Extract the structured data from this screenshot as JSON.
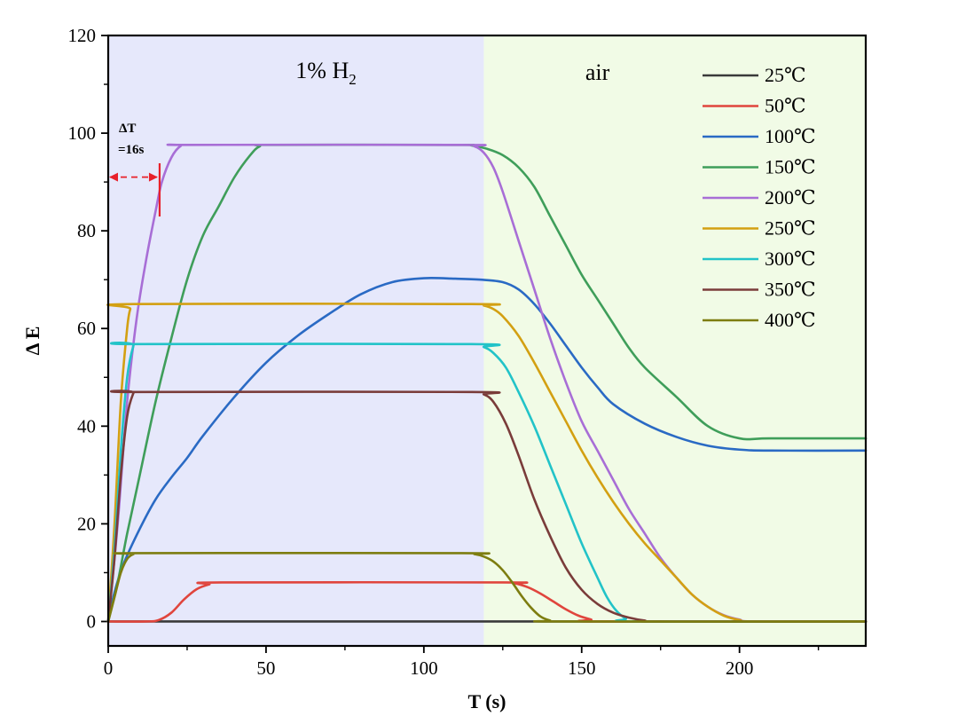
{
  "chart_data": {
    "type": "line",
    "title": "",
    "xlabel": "T (s)",
    "ylabel": "Δ E",
    "xlim": [
      0,
      240
    ],
    "ylim": [
      -5,
      120
    ],
    "xticks": [
      0,
      50,
      100,
      150,
      200
    ],
    "yticks": [
      0,
      20,
      40,
      60,
      80,
      100,
      120
    ],
    "legend_position": "top-right",
    "regions": [
      {
        "label_prefix": "1% H",
        "label_sub": "2",
        "x_range": [
          0,
          119
        ],
        "color": "#e6e8fb"
      },
      {
        "label": "air",
        "x_range": [
          119,
          240
        ],
        "color": "#f1fbe6"
      }
    ],
    "annotation": {
      "line1": "ΔT",
      "line2": "=16s",
      "x_from": 0,
      "x_to": 16,
      "y": 91,
      "color": "#e8202a"
    },
    "series": [
      {
        "name": "25℃",
        "color": "#3a3a3a",
        "points": [
          [
            0,
            0
          ],
          [
            240,
            0
          ]
        ]
      },
      {
        "name": "50℃",
        "color": "#e0453d",
        "points": [
          [
            0,
            0
          ],
          [
            12,
            0
          ],
          [
            16,
            0.3
          ],
          [
            20,
            1.8
          ],
          [
            24,
            4.5
          ],
          [
            28,
            6.6
          ],
          [
            32,
            7.6
          ],
          [
            36,
            8
          ],
          [
            125,
            8
          ],
          [
            129,
            7.8
          ],
          [
            133,
            7
          ],
          [
            137,
            5.7
          ],
          [
            141,
            4.1
          ],
          [
            145,
            2.5
          ],
          [
            149,
            1.2
          ],
          [
            153,
            0.4
          ],
          [
            156,
            0
          ],
          [
            240,
            0
          ]
        ]
      },
      {
        "name": "100℃",
        "color": "#2a6ac4",
        "points": [
          [
            0,
            0
          ],
          [
            2,
            6
          ],
          [
            5,
            12
          ],
          [
            10,
            19
          ],
          [
            15,
            25
          ],
          [
            20,
            29.5
          ],
          [
            25,
            33.5
          ],
          [
            30,
            38
          ],
          [
            40,
            46
          ],
          [
            50,
            53
          ],
          [
            60,
            58.5
          ],
          [
            70,
            63
          ],
          [
            80,
            67
          ],
          [
            90,
            69.5
          ],
          [
            100,
            70.3
          ],
          [
            110,
            70.2
          ],
          [
            118,
            70
          ],
          [
            125,
            69.5
          ],
          [
            130,
            68
          ],
          [
            135,
            65
          ],
          [
            140,
            61
          ],
          [
            145,
            56.5
          ],
          [
            150,
            52
          ],
          [
            155,
            48
          ],
          [
            160,
            44.5
          ],
          [
            170,
            40.5
          ],
          [
            180,
            37.8
          ],
          [
            190,
            36
          ],
          [
            200,
            35.2
          ],
          [
            210,
            35
          ],
          [
            240,
            35
          ]
        ]
      },
      {
        "name": "150℃",
        "color": "#3f9e5a",
        "points": [
          [
            0,
            0
          ],
          [
            3,
            8
          ],
          [
            6,
            18
          ],
          [
            10,
            30
          ],
          [
            15,
            45
          ],
          [
            20,
            58
          ],
          [
            25,
            70
          ],
          [
            30,
            79
          ],
          [
            35,
            85
          ],
          [
            40,
            91
          ],
          [
            45,
            95.5
          ],
          [
            48,
            97.3
          ],
          [
            52,
            97.6
          ],
          [
            110,
            97.6
          ],
          [
            115,
            97.5
          ],
          [
            120,
            96.8
          ],
          [
            125,
            95.5
          ],
          [
            130,
            93
          ],
          [
            135,
            89
          ],
          [
            140,
            83
          ],
          [
            145,
            77
          ],
          [
            150,
            71
          ],
          [
            155,
            66
          ],
          [
            160,
            61
          ],
          [
            165,
            56
          ],
          [
            170,
            52
          ],
          [
            180,
            46
          ],
          [
            190,
            40
          ],
          [
            200,
            37.5
          ],
          [
            210,
            37.5
          ],
          [
            240,
            37.5
          ]
        ]
      },
      {
        "name": "200℃",
        "color": "#a86ed6",
        "points": [
          [
            0,
            0
          ],
          [
            3,
            20
          ],
          [
            6,
            45
          ],
          [
            9,
            62
          ],
          [
            12,
            74
          ],
          [
            15,
            84
          ],
          [
            17,
            90
          ],
          [
            20,
            95
          ],
          [
            23,
            97.4
          ],
          [
            26,
            97.6
          ],
          [
            112,
            97.6
          ],
          [
            116,
            97.3
          ],
          [
            119,
            96
          ],
          [
            122,
            93
          ],
          [
            125,
            88
          ],
          [
            130,
            78
          ],
          [
            135,
            68
          ],
          [
            140,
            58
          ],
          [
            145,
            49
          ],
          [
            150,
            41
          ],
          [
            155,
            35
          ],
          [
            160,
            29
          ],
          [
            165,
            23
          ],
          [
            170,
            18
          ],
          [
            175,
            13
          ],
          [
            180,
            9
          ],
          [
            185,
            5.5
          ],
          [
            190,
            3
          ],
          [
            195,
            1.3
          ],
          [
            200,
            0.4
          ],
          [
            205,
            0
          ],
          [
            240,
            0
          ]
        ]
      },
      {
        "name": "250℃",
        "color": "#d3a012",
        "points": [
          [
            0,
            0
          ],
          [
            2,
            20
          ],
          [
            4,
            45
          ],
          [
            6,
            60
          ],
          [
            7,
            64
          ],
          [
            8,
            65
          ],
          [
            115,
            65
          ],
          [
            119,
            64.7
          ],
          [
            122,
            64
          ],
          [
            125,
            62.5
          ],
          [
            130,
            58.5
          ],
          [
            135,
            53
          ],
          [
            140,
            47
          ],
          [
            145,
            41
          ],
          [
            150,
            35
          ],
          [
            155,
            29.5
          ],
          [
            160,
            24.5
          ],
          [
            165,
            20
          ],
          [
            170,
            16
          ],
          [
            175,
            12.5
          ],
          [
            180,
            9
          ],
          [
            185,
            5.5
          ],
          [
            190,
            3
          ],
          [
            195,
            1.2
          ],
          [
            200,
            0.3
          ],
          [
            205,
            0
          ],
          [
            240,
            0
          ]
        ]
      },
      {
        "name": "300℃",
        "color": "#22c3c8",
        "points": [
          [
            0,
            0
          ],
          [
            2,
            15
          ],
          [
            4,
            35
          ],
          [
            6,
            50
          ],
          [
            8,
            56.5
          ],
          [
            9,
            56.8
          ],
          [
            115,
            56.8
          ],
          [
            119,
            56.2
          ],
          [
            122,
            55
          ],
          [
            126,
            52
          ],
          [
            130,
            47
          ],
          [
            135,
            40
          ],
          [
            140,
            32
          ],
          [
            145,
            24
          ],
          [
            150,
            16
          ],
          [
            155,
            9
          ],
          [
            158,
            5
          ],
          [
            161,
            2.2
          ],
          [
            164,
            0.6
          ],
          [
            167,
            0
          ],
          [
            240,
            0
          ]
        ]
      },
      {
        "name": "350℃",
        "color": "#7a3c3a",
        "points": [
          [
            0,
            0
          ],
          [
            2,
            13
          ],
          [
            4,
            30
          ],
          [
            6,
            42
          ],
          [
            8,
            46.8
          ],
          [
            9,
            47
          ],
          [
            115,
            47
          ],
          [
            119,
            46.5
          ],
          [
            122,
            45
          ],
          [
            126,
            40.5
          ],
          [
            130,
            34
          ],
          [
            135,
            25
          ],
          [
            140,
            17.5
          ],
          [
            145,
            11
          ],
          [
            150,
            6.5
          ],
          [
            155,
            3.6
          ],
          [
            160,
            1.8
          ],
          [
            165,
            0.8
          ],
          [
            170,
            0.2
          ],
          [
            175,
            0
          ],
          [
            240,
            0
          ]
        ]
      },
      {
        "name": "400℃",
        "color": "#7d7d10",
        "points": [
          [
            0,
            0
          ],
          [
            2,
            5
          ],
          [
            4,
            10
          ],
          [
            6,
            12.8
          ],
          [
            8,
            13.8
          ],
          [
            10,
            14
          ],
          [
            112,
            14
          ],
          [
            116,
            13.8
          ],
          [
            119,
            13.3
          ],
          [
            122,
            12.3
          ],
          [
            125,
            10.5
          ],
          [
            128,
            8
          ],
          [
            131,
            5.2
          ],
          [
            134,
            2.8
          ],
          [
            137,
            1
          ],
          [
            140,
            0.2
          ],
          [
            143,
            0
          ],
          [
            240,
            0
          ]
        ]
      }
    ]
  }
}
